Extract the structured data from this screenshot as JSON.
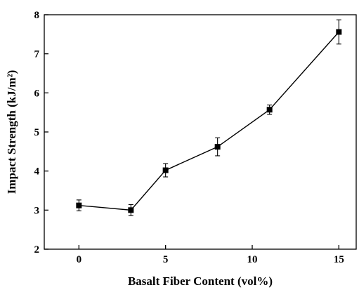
{
  "chart_data": {
    "type": "line",
    "title": "",
    "xlabel": "Basalt Fiber Content (vol%)",
    "ylabel": "Impact Strength (kJ/m²)",
    "xlim": [
      -2,
      16
    ],
    "ylim": [
      2,
      8
    ],
    "x_ticks": [
      0,
      5,
      10,
      15
    ],
    "y_ticks": [
      2,
      3,
      4,
      5,
      6,
      7,
      8
    ],
    "grid": false,
    "series": [
      {
        "marker": "square",
        "color": "#000000",
        "x": [
          0,
          3,
          5,
          8,
          11,
          15
        ],
        "y": [
          3.12,
          3.0,
          4.02,
          4.62,
          5.57,
          7.56
        ],
        "error": [
          0.14,
          0.14,
          0.17,
          0.23,
          0.12,
          0.31
        ]
      }
    ]
  }
}
